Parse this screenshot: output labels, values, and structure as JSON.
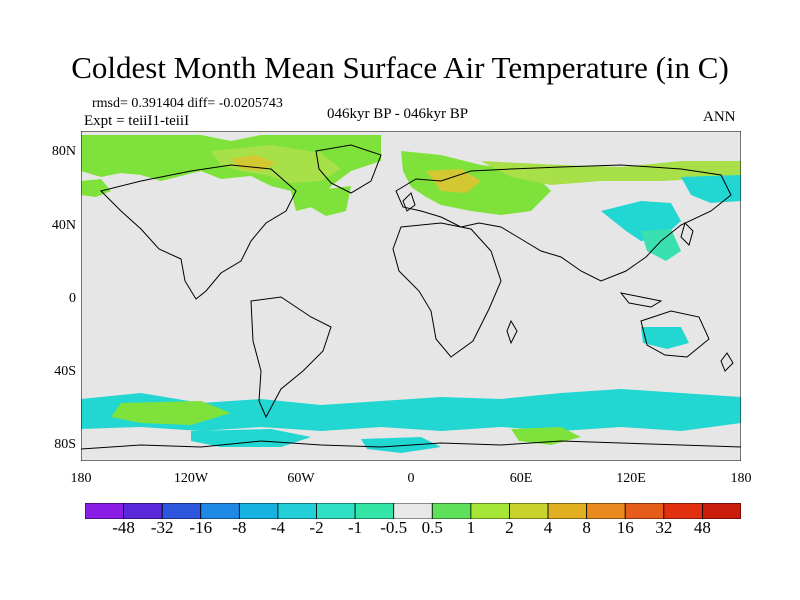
{
  "title": "Coldest Month Mean Surface Air Temperature (in C)",
  "stats": "rmsd= 0.391404 diff= -0.0205743",
  "experiment": "Expt = teiiI1-teiiI",
  "period": "046kyr BP - 046kyr BP",
  "season": "ANN",
  "lat_labels": [
    "80N",
    "40N",
    "0",
    "40S",
    "80S"
  ],
  "lon_labels": [
    "180",
    "120W",
    "60W",
    "0",
    "60E",
    "120E",
    "180"
  ],
  "colorbar": {
    "labels": [
      "-48",
      "-32",
      "-16",
      "-8",
      "-4",
      "-2",
      "-1",
      "-0.5",
      "0.5",
      "1",
      "2",
      "4",
      "8",
      "16",
      "32",
      "48"
    ],
    "colors": [
      "#8a1ee6",
      "#5a28d8",
      "#2e56dc",
      "#1f8ae6",
      "#18b2e0",
      "#22cfd8",
      "#2ee0c6",
      "#33e6a8",
      "#e8e8e8",
      "#5ee05a",
      "#a6e636",
      "#c8d22a",
      "#e0b020",
      "#e88a1e",
      "#e65c1a",
      "#e03010",
      "#cc1c0c"
    ]
  },
  "map_colors": {
    "neutral": "#e6e6e6",
    "green": "#7fe23a",
    "lime": "#a8e04a",
    "yellow": "#d4c832",
    "cyan": "#22d6d2",
    "teal": "#3ae0b0",
    "coast": "#000000"
  }
}
